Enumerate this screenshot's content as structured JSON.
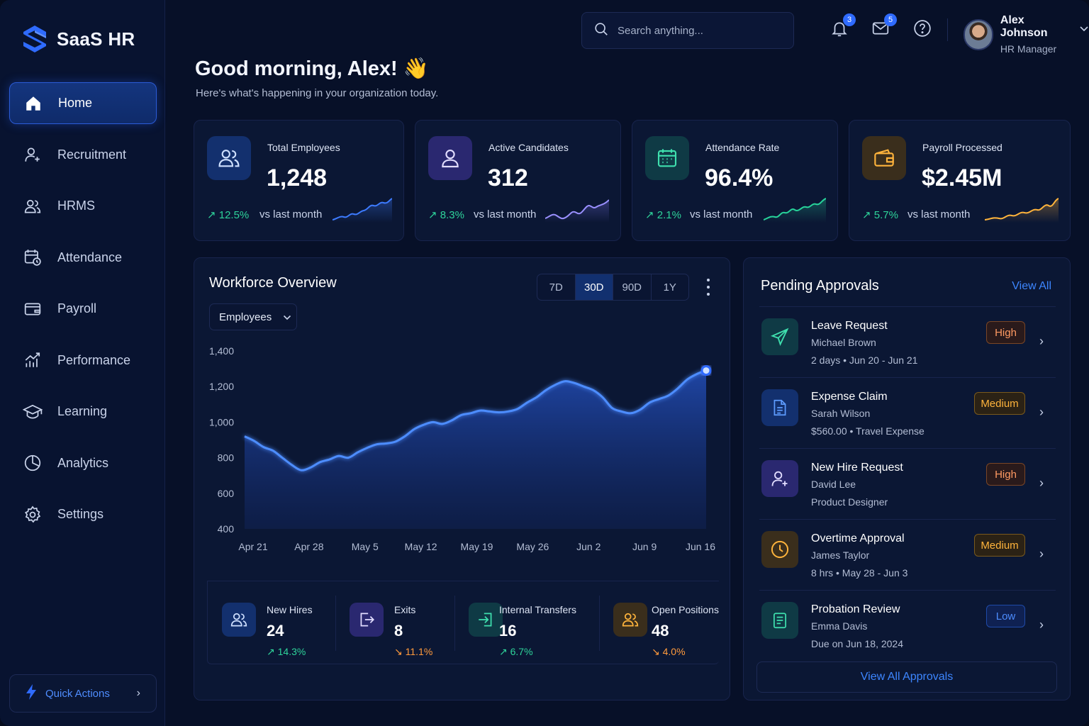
{
  "sidebar": {
    "brand": "SaaS HR",
    "items": [
      {
        "label": "Home",
        "icon": "home-icon",
        "active": true
      },
      {
        "label": "Recruitment",
        "icon": "user-plus-icon"
      },
      {
        "label": "HRMS",
        "icon": "users-icon"
      },
      {
        "label": "Attendance",
        "icon": "calendar-clock-icon"
      },
      {
        "label": "Payroll",
        "icon": "wallet-icon"
      },
      {
        "label": "Performance",
        "icon": "chart-up-icon"
      },
      {
        "label": "Learning",
        "icon": "graduation-cap-icon"
      },
      {
        "label": "Analytics",
        "icon": "pie-chart-icon"
      },
      {
        "label": "Settings",
        "icon": "gear-icon"
      }
    ],
    "quick_actions": "Quick Actions"
  },
  "header": {
    "search_placeholder": "Search anything...",
    "notifications_count": "3",
    "messages_count": "5",
    "user_name": "Alex Johnson",
    "user_role": "HR Manager"
  },
  "greeting": {
    "title": "Good morning, Alex! 👋",
    "subtitle": "Here's what's happening in your organization today."
  },
  "stats": [
    {
      "label": "Total Employees",
      "value": "1,248",
      "delta": "↗ 12.5%",
      "vs": "vs last month",
      "color": "#3d7bff"
    },
    {
      "label": "Active Candidates",
      "value": "312",
      "delta": "↗ 8.3%",
      "vs": "vs last month",
      "color": "#8a7dff"
    },
    {
      "label": "Attendance Rate",
      "value": "96.4%",
      "delta": "↗ 2.1%",
      "vs": "vs last month",
      "color": "#27d39a"
    },
    {
      "label": "Payroll Processed",
      "value": "$2.45M",
      "delta": "↗ 5.7%",
      "vs": "vs last month",
      "color": "#ffb43c"
    }
  ],
  "workforce": {
    "title": "Workforce Overview",
    "ranges": [
      "7D",
      "30D",
      "90D",
      "1Y"
    ],
    "active_range": "30D",
    "metric_select": "Employees",
    "mini": [
      {
        "label": "New Hires",
        "value": "24",
        "delta": "↗ 14.3%",
        "trend": "up"
      },
      {
        "label": "Exits",
        "value": "8",
        "delta": "↘ 11.1%",
        "trend": "down"
      },
      {
        "label": "Internal Transfers",
        "value": "16",
        "delta": "↗ 6.7%",
        "trend": "up"
      },
      {
        "label": "Open Positions",
        "value": "48",
        "delta": "↘ 4.0%",
        "trend": "down"
      }
    ]
  },
  "chart_data": {
    "type": "area",
    "title": "",
    "xlabel": "",
    "ylabel": "",
    "ylim": [
      400,
      1400
    ],
    "y_ticks": [
      "1,400",
      "1,200",
      "1,000",
      "800",
      "600",
      "400"
    ],
    "x_ticks": [
      "Apr 21",
      "Apr 28",
      "May 5",
      "May 12",
      "May 19",
      "May 26",
      "Jun 2",
      "Jun 9",
      "Jun 16"
    ],
    "grid": false,
    "color": "#3d7bff",
    "series": [
      {
        "values": [
          920,
          895,
          860,
          840,
          800,
          760,
          730,
          745,
          775,
          790,
          810,
          800,
          830,
          855,
          875,
          880,
          890,
          920,
          960,
          985,
          1000,
          990,
          1010,
          1040,
          1050,
          1065,
          1060,
          1055,
          1060,
          1075,
          1110,
          1140,
          1180,
          1210,
          1230,
          1220,
          1200,
          1180,
          1140,
          1080,
          1060,
          1050,
          1070,
          1110,
          1130,
          1150,
          1190,
          1240,
          1270,
          1290
        ]
      }
    ]
  },
  "approvals": {
    "title": "Pending Approvals",
    "view_all": "View All",
    "items": [
      {
        "title": "Leave Request",
        "name": "Michael Brown",
        "meta": "2 days • Jun 20 - Jun 21",
        "priority": "High",
        "icon": "plane-icon",
        "color": "#27d39a"
      },
      {
        "title": "Expense Claim",
        "name": "Sarah Wilson",
        "meta": "$560.00 • Travel Expense",
        "priority": "Medium",
        "icon": "document-icon",
        "color": "#3d7bff"
      },
      {
        "title": "New Hire Request",
        "name": "David Lee",
        "meta": "Product Designer",
        "priority": "High",
        "icon": "user-plus-icon",
        "color": "#8a7dff"
      },
      {
        "title": "Overtime Approval",
        "name": "James Taylor",
        "meta": "8 hrs • May 28 - Jun 3",
        "priority": "Medium",
        "icon": "clock-icon",
        "color": "#ffb43c"
      },
      {
        "title": "Probation Review",
        "name": "Emma Davis",
        "meta": "Due on Jun 18, 2024",
        "priority": "Low",
        "icon": "clipboard-icon",
        "color": "#27d39a"
      }
    ],
    "footer_button": "View All Approvals"
  }
}
